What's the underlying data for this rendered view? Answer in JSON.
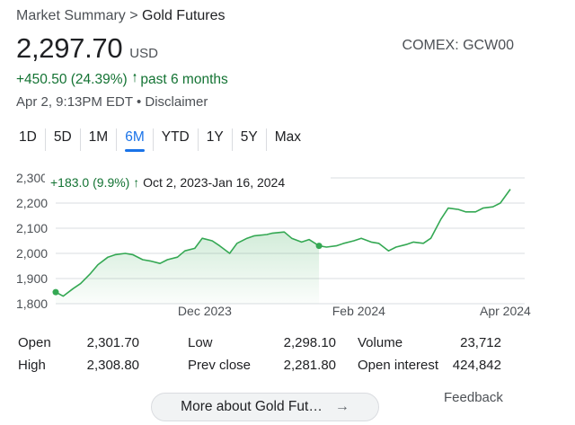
{
  "breadcrumb": {
    "root": "Market Summary",
    "separator": ">",
    "current": "Gold Futures"
  },
  "quote": {
    "price": "2,297.70",
    "currency": "USD",
    "ticker": "COMEX: GCW00",
    "change": "+450.50 (24.39%)",
    "change_period": "past 6 months",
    "timestamp": "Apr 2, 9:13PM EDT",
    "disclaimer": "Disclaimer"
  },
  "ranges": [
    {
      "label": "1D",
      "active": false
    },
    {
      "label": "5D",
      "active": false
    },
    {
      "label": "1M",
      "active": false
    },
    {
      "label": "6M",
      "active": true
    },
    {
      "label": "YTD",
      "active": false
    },
    {
      "label": "1Y",
      "active": false
    },
    {
      "label": "5Y",
      "active": false
    },
    {
      "label": "Max",
      "active": false
    }
  ],
  "chart_data": {
    "type": "area",
    "ylim": [
      1800,
      2300
    ],
    "yticks": [
      "2,300",
      "2,200",
      "2,100",
      "2,000",
      "1,900",
      "1,800"
    ],
    "xticks": [
      "Dec 2023",
      "Feb 2024",
      "Apr 2024"
    ],
    "xlim": [
      "2023-10-02",
      "2024-04-02"
    ],
    "tooltip": {
      "change": "+183.0 (9.9%)",
      "range": "Oct 2, 2023-Jan 16, 2024"
    },
    "selection": {
      "start": "2023-10-02",
      "end": "2024-01-16"
    },
    "series": [
      {
        "x": [
          "2023-10-02",
          "2023-10-05",
          "2023-10-09",
          "2023-10-12",
          "2023-10-16",
          "2023-10-19",
          "2023-10-23",
          "2023-10-26",
          "2023-10-30",
          "2023-11-02",
          "2023-11-06",
          "2023-11-09",
          "2023-11-13",
          "2023-11-16",
          "2023-11-20",
          "2023-11-23",
          "2023-11-27",
          "2023-11-30",
          "2023-12-04",
          "2023-12-07",
          "2023-12-11",
          "2023-12-14",
          "2023-12-18",
          "2023-12-21",
          "2023-12-26",
          "2023-12-28",
          "2024-01-02",
          "2024-01-05",
          "2024-01-09",
          "2024-01-12",
          "2024-01-16",
          "2024-01-19",
          "2024-01-23",
          "2024-01-26",
          "2024-01-30",
          "2024-02-02",
          "2024-02-06",
          "2024-02-09",
          "2024-02-13",
          "2024-02-16",
          "2024-02-20",
          "2024-02-23",
          "2024-02-27",
          "2024-03-01",
          "2024-03-05",
          "2024-03-08",
          "2024-03-12",
          "2024-03-15",
          "2024-03-19",
          "2024-03-22",
          "2024-03-26",
          "2024-03-29",
          "2024-04-02"
        ],
        "values": [
          1846,
          1830,
          1860,
          1880,
          1920,
          1955,
          1985,
          1995,
          2000,
          1995,
          1975,
          1970,
          1960,
          1975,
          1985,
          2010,
          2020,
          2060,
          2050,
          2030,
          2000,
          2040,
          2060,
          2070,
          2075,
          2080,
          2085,
          2060,
          2045,
          2055,
          2030,
          2025,
          2030,
          2040,
          2050,
          2060,
          2045,
          2040,
          2010,
          2025,
          2035,
          2045,
          2040,
          2060,
          2135,
          2180,
          2175,
          2165,
          2165,
          2180,
          2185,
          2200,
          2255
        ]
      }
    ]
  },
  "stats": {
    "open_label": "Open",
    "open_value": "2,301.70",
    "high_label": "High",
    "high_value": "2,308.80",
    "low_label": "Low",
    "low_value": "2,298.10",
    "prev_close_label": "Prev close",
    "prev_close_value": "2,281.80",
    "volume_label": "Volume",
    "volume_value": "23,712",
    "open_interest_label": "Open interest",
    "open_interest_value": "424,842"
  },
  "more_button": {
    "label": "More about Gold Fut…",
    "icon": "arrow-right-icon"
  },
  "feedback": "Feedback",
  "colors": {
    "up": "#137333",
    "accent": "#1a73e8",
    "line": "#34a853",
    "grid": "#dadce0"
  }
}
